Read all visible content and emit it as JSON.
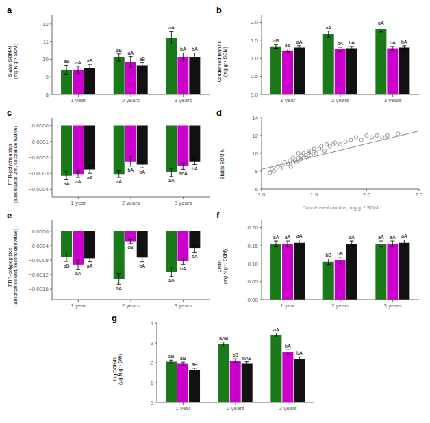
{
  "chart_data": [
    {
      "type": "bar",
      "title": "a",
      "ylabel": "Stable SOM-N\n(mg N g⁻¹ SOM)",
      "categories": [
        "1 year",
        "2 years",
        "3 years"
      ],
      "ylim": [
        8,
        12.5
      ],
      "yticks": [
        8,
        9,
        10,
        11,
        12
      ],
      "series": [
        {
          "color": "#1a7a1a",
          "values": [
            9.4,
            10.1,
            11.2
          ],
          "errors": [
            0.25,
            0.2,
            0.35
          ],
          "annotations": [
            "aB",
            "aB",
            "aA"
          ]
        },
        {
          "color": "#cc00cc",
          "values": [
            9.4,
            9.85,
            10.1
          ],
          "errors": [
            0.2,
            0.3,
            0.25
          ],
          "annotations": [
            "aA",
            "aA",
            "bA"
          ]
        },
        {
          "color": "#111111",
          "values": [
            9.5,
            9.65,
            10.1
          ],
          "errors": [
            0.2,
            0.15,
            0.25
          ],
          "annotations": [
            "aB",
            "aB",
            "bA"
          ]
        }
      ]
    },
    {
      "type": "bar",
      "title": "b",
      "ylabel": "Condensed tannins\n(mg g⁻¹ SOM)",
      "categories": [
        "1 year",
        "2 years",
        "3 years"
      ],
      "ylim": [
        0,
        2.2
      ],
      "yticks": [
        {
          "value": 0,
          "label": "0.0"
        },
        {
          "value": 0.5,
          "label": "0.5"
        },
        {
          "value": 1.0,
          "label": "1.0"
        },
        {
          "value": 1.5,
          "label": "1.5"
        },
        {
          "value": 2.0,
          "label": "2.0"
        }
      ],
      "series": [
        {
          "color": "#1a7a1a",
          "values": [
            1.33,
            1.67,
            1.8
          ],
          "errors": [
            0.05,
            0.08,
            0.07
          ],
          "annotations": [
            "aB",
            "aA",
            "aA"
          ]
        },
        {
          "color": "#cc00cc",
          "values": [
            1.22,
            1.25,
            1.28
          ],
          "errors": [
            0.04,
            0.06,
            0.05
          ],
          "annotations": [
            "aA",
            "bA",
            "bA"
          ]
        },
        {
          "color": "#111111",
          "values": [
            1.3,
            1.28,
            1.3
          ],
          "errors": [
            0.05,
            0.05,
            0.05
          ],
          "annotations": [
            "aA",
            "bA",
            "bA"
          ]
        }
      ]
    },
    {
      "type": "bar",
      "title": "c",
      "ylabel": "FTIR-polyphenolics\n(absorbance unit, second derivative)",
      "categories": [
        "1 year",
        "2 years",
        "3 years"
      ],
      "ylim": [
        -0.00045,
        5e-05
      ],
      "yticks": [
        {
          "value": -0.0004,
          "label": "−0.0004"
        },
        {
          "value": -0.0003,
          "label": "−0.0003"
        },
        {
          "value": -0.0002,
          "label": "−0.0002"
        },
        {
          "value": -0.0001,
          "label": "−0.0001"
        },
        {
          "value": 0,
          "label": "0.0000"
        }
      ],
      "series": [
        {
          "color": "#1a7a1a",
          "values": [
            -0.000315,
            -0.000305,
            -0.000295
          ],
          "errors": [
            2.5e-05,
            2e-05,
            2.5e-05
          ],
          "annotations": [
            "aA",
            "aA",
            "aA"
          ]
        },
        {
          "color": "#cc00cc",
          "values": [
            -0.000305,
            -0.000225,
            -0.000255
          ],
          "errors": [
            2e-05,
            3e-05,
            2e-05
          ],
          "annotations": [
            "aA",
            "bA",
            "abA"
          ]
        },
        {
          "color": "#111111",
          "values": [
            -0.000275,
            -0.000245,
            -0.000225
          ],
          "errors": [
            2.5e-05,
            2e-05,
            2e-05
          ],
          "annotations": [
            "aA",
            "bA",
            "bA"
          ]
        }
      ]
    },
    {
      "type": "scatter",
      "title": "d",
      "xlabel": "Condensed tannins, mg g⁻¹ SOM",
      "ylabel": "Stable SOM-N",
      "xlim": [
        1.0,
        2.5
      ],
      "ylim": [
        6,
        14
      ],
      "xticks": [
        {
          "value": 1.0,
          "label": "1.0"
        },
        {
          "value": 1.5,
          "label": "1.5"
        },
        {
          "value": 2.0,
          "label": "2.0"
        },
        {
          "value": 2.5,
          "label": "2.5"
        }
      ],
      "yticks": [
        6,
        8,
        10,
        12,
        14
      ],
      "series": [
        {
          "type": "scatter",
          "color": "#888888",
          "marker": "circle",
          "x": [
            1.08,
            1.1,
            1.12,
            1.15,
            1.18,
            1.2,
            1.22,
            1.25,
            1.27,
            1.28,
            1.3,
            1.3,
            1.32,
            1.33,
            1.35,
            1.35,
            1.37,
            1.38,
            1.4,
            1.4,
            1.42,
            1.43,
            1.45,
            1.45,
            1.47,
            1.5,
            1.5,
            1.52,
            1.55,
            1.57,
            1.6,
            1.62,
            1.65,
            1.68,
            1.7,
            1.75,
            1.8,
            1.85,
            1.9,
            1.95,
            2.0,
            2.05,
            2.1,
            2.15,
            2.2,
            2.3
          ],
          "values": [
            7.8,
            8.2,
            8.0,
            8.5,
            8.3,
            8.7,
            9.0,
            8.8,
            9.2,
            8.5,
            9.0,
            9.5,
            9.2,
            9.0,
            9.5,
            10.0,
            9.3,
            9.7,
            9.5,
            10.0,
            9.8,
            9.5,
            10.0,
            10.3,
            9.8,
            10.2,
            10.5,
            10.0,
            10.5,
            10.8,
            10.3,
            11.0,
            10.8,
            11.0,
            11.2,
            11.0,
            11.3,
            11.5,
            11.8,
            11.5,
            12.0,
            11.8,
            12.0,
            11.8,
            12.0,
            12.2
          ]
        },
        {
          "type": "line",
          "color": "#888888",
          "line_style": "solid",
          "x": [
            1.0,
            2.5
          ],
          "values": [
            8.2,
            12.5
          ]
        }
      ]
    },
    {
      "type": "bar",
      "title": "e",
      "ylabel": "FTIR-polypeptides\n(absorbance unit, second derivative)",
      "categories": [
        "1 year",
        "2 years",
        "3 years"
      ],
      "ylim": [
        -0.0019,
        0.0003
      ],
      "yticks": [
        {
          "value": -0.0016,
          "label": "−0.0016"
        },
        {
          "value": -0.0012,
          "label": "−0.0012"
        },
        {
          "value": -0.0008,
          "label": "−0.0008"
        },
        {
          "value": -0.0004,
          "label": "−0.0004"
        },
        {
          "value": 0,
          "label": "0.0000"
        }
      ],
      "series": [
        {
          "color": "#1a7a1a",
          "values": [
            -0.00072,
            -0.00132,
            -0.00113
          ],
          "errors": [
            0.00012,
            0.00015,
            0.00012
          ],
          "annotations": [
            "aB",
            "aA",
            "aA"
          ]
        },
        {
          "color": "#cc00cc",
          "values": [
            -0.00093,
            -0.00028,
            -0.00082
          ],
          "errors": [
            0.00013,
            6e-05,
            0.0001
          ],
          "annotations": [
            "aA",
            "cB",
            "bA"
          ]
        },
        {
          "color": "#111111",
          "values": [
            -0.00075,
            -0.00073,
            -0.00048
          ],
          "errors": [
            0.0001,
            0.00012,
            0.0001
          ],
          "annotations": [
            "aA",
            "bA",
            "bA"
          ]
        }
      ]
    },
    {
      "type": "bar",
      "title": "f",
      "ylabel": "Chitin\n(mg N g⁻¹ SOM)",
      "categories": [
        "1 year",
        "2 years",
        "3 years"
      ],
      "ylim": [
        0,
        0.22
      ],
      "yticks": [
        {
          "value": 0,
          "label": "0.00"
        },
        {
          "value": 0.05,
          "label": "0.05"
        },
        {
          "value": 0.1,
          "label": "0.10"
        },
        {
          "value": 0.15,
          "label": "0.15"
        },
        {
          "value": 0.2,
          "label": "0.20"
        }
      ],
      "series": [
        {
          "color": "#1a7a1a",
          "values": [
            0.155,
            0.105,
            0.155
          ],
          "errors": [
            0.008,
            0.008,
            0.008
          ],
          "annotations": [
            "aA",
            "bB",
            "aA"
          ]
        },
        {
          "color": "#cc00cc",
          "values": [
            0.155,
            0.11,
            0.155
          ],
          "errors": [
            0.008,
            0.008,
            0.008
          ],
          "annotations": [
            "aA",
            "bB",
            "aA"
          ]
        },
        {
          "color": "#111111",
          "values": [
            0.158,
            0.155,
            0.158
          ],
          "errors": [
            0.008,
            0.008,
            0.008
          ],
          "annotations": [
            "aA",
            "aA",
            "aA"
          ]
        }
      ]
    },
    {
      "type": "bar",
      "title": "g",
      "ylabel": "log DON/N\n(μg N g⁻¹ DW)",
      "categories": [
        "1 year",
        "2 years",
        "3 years"
      ],
      "ylim": [
        0,
        4
      ],
      "yticks": [
        0,
        1,
        2,
        3,
        4
      ],
      "series": [
        {
          "color": "#1a7a1a",
          "values": [
            2.05,
            2.95,
            3.4
          ],
          "errors": [
            0.08,
            0.1,
            0.1
          ],
          "annotations": [
            "aB",
            "aAB",
            "aA"
          ]
        },
        {
          "color": "#cc00cc",
          "values": [
            1.95,
            2.1,
            2.55
          ],
          "errors": [
            0.08,
            0.1,
            0.1
          ],
          "annotations": [
            "aB",
            "bB",
            "bA"
          ]
        },
        {
          "color": "#111111",
          "values": [
            1.65,
            1.95,
            2.2
          ],
          "errors": [
            0.08,
            0.1,
            0.1
          ],
          "annotations": [
            "aB",
            "bAB",
            "bA"
          ]
        }
      ]
    }
  ]
}
